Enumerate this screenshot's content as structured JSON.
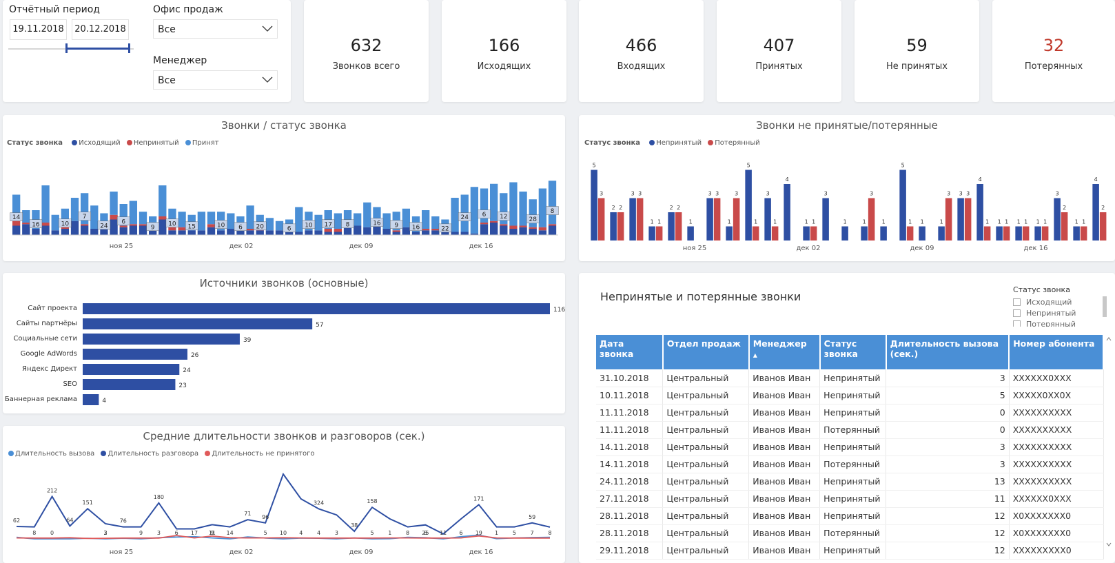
{
  "filters": {
    "period_label": "Отчётный период",
    "date_from": "19.11.2018",
    "date_to": "20.12.2018",
    "office_label": "Офис продаж",
    "office_value": "Все",
    "manager_label": "Менеджер",
    "manager_value": "Все"
  },
  "kpis": [
    {
      "value": "632",
      "label": "Звонков всего",
      "color": "#222222"
    },
    {
      "value": "166",
      "label": "Исходящих",
      "color": "#222222"
    },
    {
      "value": "466",
      "label": "Входящих",
      "color": "#222222"
    },
    {
      "value": "407",
      "label": "Принятых",
      "color": "#222222"
    },
    {
      "value": "59",
      "label": "Не принятых",
      "color": "#222222"
    },
    {
      "value": "32",
      "label": "Потерянных",
      "color": "#c0392b"
    }
  ],
  "colors": {
    "dark_blue": "#2e4fa3",
    "red": "#c94a4a",
    "light_blue": "#4a8fd6",
    "pale": "#c9d6ec",
    "line_red": "#e05a5a"
  },
  "x_ticks": [
    "ноя 25",
    "дек 02",
    "дек 09",
    "дек 16"
  ],
  "calls_status": {
    "title": "Звонки / статус звонка",
    "legend_title": "Статус звонка",
    "legend": [
      "Исходящий",
      "Непринятый",
      "Принят"
    ]
  },
  "missed": {
    "title": "Звонки не принятые/потерянные",
    "legend_title": "Статус звонка",
    "legend": [
      "Непринятый",
      "Потерянный"
    ]
  },
  "sources": {
    "title": "Источники звонков (основные)",
    "labels": [
      "Сайт проекта",
      "Сайты партнёры",
      "Социальные сети",
      "Google AdWords",
      "Яндекс Директ",
      "SEO",
      "Баннерная реклама"
    ],
    "values": [
      "116",
      "57",
      "39",
      "26",
      "24",
      "23",
      "4"
    ]
  },
  "durations": {
    "title": "Средние длительности звонков и разговоров (сек.)",
    "legend": [
      "Длительность вызова",
      "Длительность разговора",
      "Длительность не принятого"
    ]
  },
  "table": {
    "title": "Непринятые и потерянные звонки",
    "slicer_title": "Статус звонка",
    "slicer_items": [
      "Исходящий",
      "Непринятый",
      "Потерянный"
    ],
    "columns": [
      "Дата звонка",
      "Отдел продаж",
      "Менеджер",
      "Статус звонка",
      "Длительность вызова (сек.)",
      "Номер абонента"
    ],
    "rows": [
      [
        "31.10.2018",
        "Центральный",
        "Иванов Иван",
        "Непринятый",
        "3",
        "XXXXXX0XXX"
      ],
      [
        "10.11.2018",
        "Центральный",
        "Иванов Иван",
        "Непринятый",
        "5",
        "XXXXX0XX0X"
      ],
      [
        "11.11.2018",
        "Центральный",
        "Иванов Иван",
        "Непринятый",
        "0",
        "XXXXXXXXXX"
      ],
      [
        "11.11.2018",
        "Центральный",
        "Иванов Иван",
        "Потерянный",
        "0",
        "XXXXXXXXXX"
      ],
      [
        "14.11.2018",
        "Центральный",
        "Иванов Иван",
        "Непринятый",
        "3",
        "XXXXXXXXXX"
      ],
      [
        "14.11.2018",
        "Центральный",
        "Иванов Иван",
        "Потерянный",
        "3",
        "XXXXXXXXXX"
      ],
      [
        "24.11.2018",
        "Центральный",
        "Иванов Иван",
        "Непринятый",
        "13",
        "XXXXXXXXXX"
      ],
      [
        "27.11.2018",
        "Центральный",
        "Иванов Иван",
        "Непринятый",
        "11",
        "XXXXXX0XXX"
      ],
      [
        "28.11.2018",
        "Центральный",
        "Иванов Иван",
        "Непринятый",
        "12",
        "X0XXXXXXX0"
      ],
      [
        "28.11.2018",
        "Центральный",
        "Иванов Иван",
        "Потерянный",
        "12",
        "X0XXXXXXX0"
      ],
      [
        "29.11.2018",
        "Центральный",
        "Иванов Иван",
        "Непринятый",
        "12",
        "XXXXXXXXX0"
      ]
    ]
  },
  "chart_data": [
    {
      "type": "bar",
      "title": "Звонки / статус звонка",
      "stacked": true,
      "series": [
        {
          "name": "Исходящий",
          "values": [
            6,
            7,
            4,
            6,
            3,
            4,
            9,
            6,
            4,
            4,
            10,
            5,
            6,
            6,
            4,
            10,
            3,
            3,
            3,
            3,
            5,
            3,
            4,
            4,
            3,
            3,
            3,
            3,
            2,
            2,
            3,
            3,
            2,
            2,
            7,
            6,
            5,
            8,
            4,
            2,
            5,
            2,
            3,
            3,
            2,
            2,
            2,
            1,
            7,
            8,
            6,
            4,
            5,
            4,
            3,
            6
          ]
        },
        {
          "name": "Непринятый",
          "values": [
            4,
            1,
            0,
            2,
            0,
            1,
            0,
            1,
            0,
            0,
            3,
            1,
            1,
            1,
            2,
            2,
            2,
            2,
            0,
            0,
            2,
            0,
            0,
            0,
            1,
            1,
            0,
            0,
            0,
            0,
            0,
            0,
            2,
            2,
            0,
            0,
            0,
            0,
            0,
            1,
            0,
            0,
            1,
            1,
            0,
            0,
            0,
            0,
            1,
            1,
            1,
            2,
            1,
            1,
            2,
            1
          ]
        },
        {
          "name": "Принят",
          "values": [
            16,
            8,
            12,
            24,
            10,
            12,
            15,
            20,
            15,
            10,
            15,
            14,
            15,
            8,
            6,
            20,
            12,
            10,
            10,
            12,
            8,
            12,
            10,
            8,
            15,
            9,
            8,
            6,
            8,
            16,
            12,
            10,
            12,
            10,
            9,
            8,
            16,
            10,
            10,
            12,
            12,
            10,
            12,
            8,
            8,
            22,
            24,
            30,
            22,
            24,
            20,
            28,
            22,
            18,
            25,
            28
          ]
        }
      ],
      "data_labels": [
        "14",
        "16",
        "10",
        "7",
        "24",
        "6",
        "9",
        "10",
        "15",
        "10",
        "6",
        "20",
        "6",
        "10",
        "17",
        "8",
        "16",
        "9",
        "16",
        "22",
        "24",
        "6",
        "12",
        "28",
        "8"
      ]
    },
    {
      "type": "bar",
      "title": "Звонки не принятые/потерянные",
      "series": [
        {
          "name": "Непринятый",
          "values": [
            5,
            2,
            3,
            1,
            2,
            1,
            3,
            1,
            5,
            3,
            4,
            1,
            3,
            1,
            1,
            1,
            5,
            1,
            1,
            3,
            4,
            1,
            1,
            1,
            3,
            1,
            4
          ]
        },
        {
          "name": "Потерянный",
          "values": [
            3,
            2,
            3,
            1,
            2,
            0,
            3,
            3,
            1,
            1,
            0,
            1,
            0,
            0,
            3,
            0,
            1,
            0,
            3,
            3,
            1,
            1,
            1,
            1,
            2,
            1,
            2
          ]
        }
      ]
    },
    {
      "type": "bar",
      "orientation": "horizontal",
      "title": "Источники звонков (основные)",
      "categories": [
        "Сайт проекта",
        "Сайты партнёры",
        "Социальные сети",
        "Google AdWords",
        "Яндекс Директ",
        "SEO",
        "Баннерная реклама"
      ],
      "values": [
        116,
        57,
        39,
        26,
        24,
        23,
        4
      ]
    },
    {
      "type": "line",
      "title": "Средние длительности звонков и разговоров (сек.)",
      "series": [
        {
          "name": "Длительность вызова",
          "values": [
            8,
            0,
            0,
            0,
            3,
            0,
            3,
            0,
            6,
            9,
            11,
            5,
            0,
            10,
            4,
            0,
            4,
            3,
            0,
            5,
            0,
            1,
            8,
            6,
            0,
            11,
            19,
            1,
            5,
            7,
            8
          ]
        },
        {
          "name": "Длительность разговора",
          "values": [
            62,
            60,
            212,
            64,
            151,
            76,
            60,
            60,
            180,
            50,
            50,
            71,
            60,
            96,
            80,
            324,
            200,
            150,
            120,
            38,
            158,
            100,
            60,
            70,
            25,
            100,
            171,
            60,
            60,
            80,
            59
          ]
        },
        {
          "name": "Длительность не принятого",
          "values": [
            5,
            4,
            4,
            6,
            2,
            3,
            4,
            4,
            4,
            17,
            5,
            14,
            6,
            5,
            5,
            6,
            5,
            4,
            4,
            4,
            4,
            5,
            5,
            4,
            4,
            5,
            15,
            5,
            4,
            4,
            4
          ]
        }
      ],
      "data_labels": [
        "62",
        "8",
        "0",
        "212",
        "64",
        "151",
        "3",
        "2",
        "76",
        "9",
        "3",
        "180",
        "6",
        "17",
        "9",
        "11",
        "14",
        "71",
        "5",
        "96",
        "10",
        "4",
        "324",
        "4",
        "3",
        "38",
        "5",
        "158",
        "1",
        "8",
        "6",
        "25",
        "11",
        "6",
        "171",
        "19",
        "1",
        "5",
        "7",
        "59",
        "8"
      ]
    }
  ]
}
